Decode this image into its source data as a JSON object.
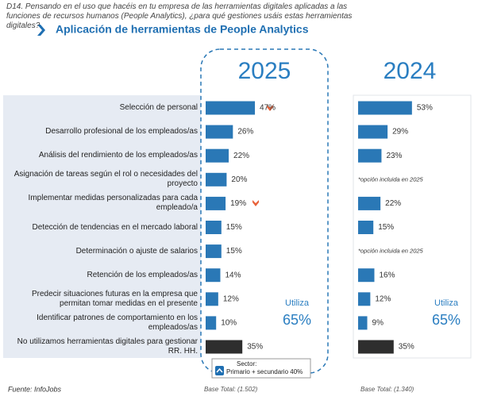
{
  "header": {
    "question": "D14. Pensando en el uso que hacéis en tu empresa de las herramientas digitales aplicadas a las funciones de recursos humanos (People Analytics), ¿para qué gestiones usáis estas herramientas digitales?",
    "title": "Aplicación de herramientas de People Analytics"
  },
  "chart_data": [
    {
      "type": "bar",
      "title": "2025",
      "categories": [
        "Selección de personal",
        "Desarrollo profesional de los empleados/as",
        "Análisis del rendimiento de los empleados/as",
        "Asignación de tareas según el rol o necesidades del proyecto",
        "Implementar medidas personalizadas para cada empleado/a",
        "Detección de tendencias en el mercado laboral",
        "Determinación o ajuste de salarios",
        "Retención de los empleados/as",
        "Predecir situaciones futuras en la empresa que permitan tomar medidas en el presente",
        "Identificar patrones de comportamiento en los empleados/as",
        "No utilizamos herramientas digitales para gestionar RR. HH."
      ],
      "values": [
        47,
        26,
        22,
        20,
        19,
        15,
        15,
        14,
        12,
        10,
        35
      ],
      "value_labels": [
        "47%",
        "26%",
        "22%",
        "20%",
        "19%",
        "15%",
        "15%",
        "14%",
        "12%",
        "10%",
        "35%"
      ],
      "colors": [
        "#2a78b6",
        "#2a78b6",
        "#2a78b6",
        "#2a78b6",
        "#2a78b6",
        "#2a78b6",
        "#2a78b6",
        "#2a78b6",
        "#2a78b6",
        "#2a78b6",
        "#2e2e2e"
      ],
      "summary_label": "Utiliza",
      "summary_value": "65%",
      "sector_note": {
        "label": "Sector:",
        "text": "Primario + secundario 40%"
      },
      "base": "Base Total: (1.502)"
    },
    {
      "type": "bar",
      "title": "2024",
      "values": [
        53,
        29,
        23,
        null,
        22,
        15,
        null,
        16,
        12,
        9,
        35
      ],
      "value_labels": [
        "53%",
        "29%",
        "23%",
        null,
        "22%",
        "15%",
        null,
        "16%",
        "12%",
        "9%",
        "35%"
      ],
      "notes": [
        null,
        null,
        null,
        "*opción incluida en 2025",
        null,
        null,
        "*opción incluida en 2025",
        null,
        null,
        null,
        null
      ],
      "colors": [
        "#2a78b6",
        "#2a78b6",
        "#2a78b6",
        "#2a78b6",
        "#2a78b6",
        "#2a78b6",
        "#2a78b6",
        "#2a78b6",
        "#2a78b6",
        "#2a78b6",
        "#2e2e2e"
      ],
      "summary_label": "Utiliza",
      "summary_value": "65%",
      "base": "Base Total: (1.340)"
    }
  ],
  "source": "Fuente: InfoJobs"
}
